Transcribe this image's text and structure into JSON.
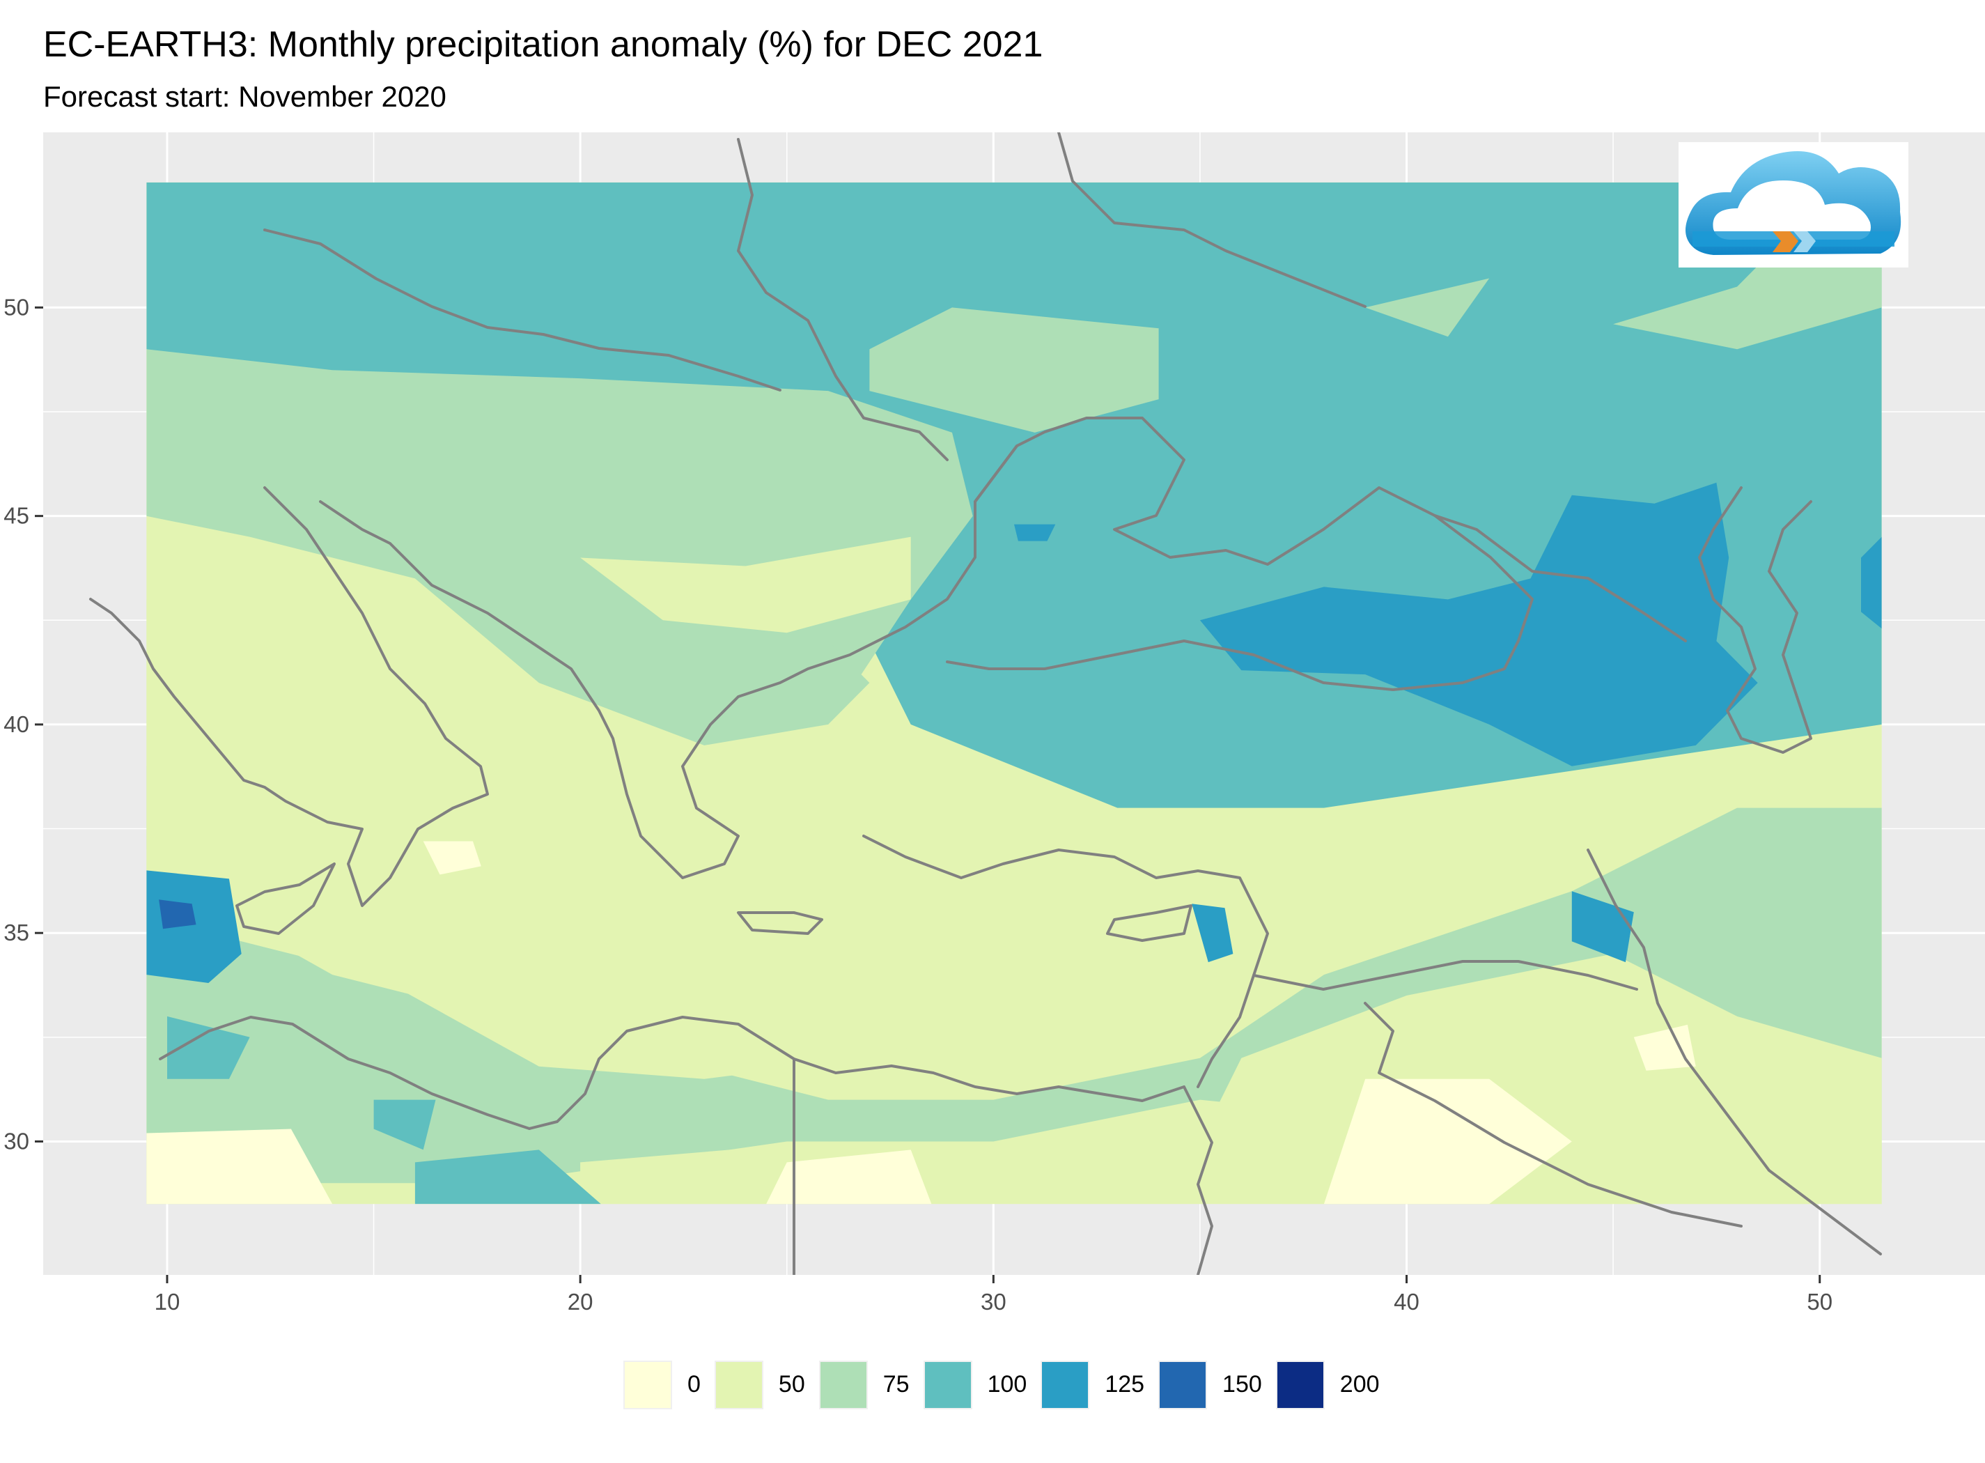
{
  "header": {
    "title": "EC-EARTH3: Monthly precipitation anomaly (%) for DEC 2021",
    "subtitle": "Forecast start: November 2020"
  },
  "chart_data": {
    "type": "heatmap",
    "x_ticks": [
      10,
      20,
      30,
      40,
      50
    ],
    "y_ticks": [
      30,
      35,
      40,
      45,
      50
    ],
    "xlim": [
      7,
      54
    ],
    "ylim": [
      26.8,
      54.2
    ],
    "data_extent": {
      "lon": [
        9.5,
        51.5
      ],
      "lat": [
        28.5,
        53
      ]
    },
    "panel_background": "#ebebeb",
    "grid": true,
    "legend_position": "bottom",
    "legend": [
      {
        "label": "0",
        "color": "#ffffd9"
      },
      {
        "label": "50",
        "color": "#e3f4b2"
      },
      {
        "label": "75",
        "color": "#aedfb6"
      },
      {
        "label": "100",
        "color": "#5fbfbf"
      },
      {
        "label": "125",
        "color": "#2a9ec5"
      },
      {
        "label": "150",
        "color": "#2267b0"
      },
      {
        "label": "200",
        "color": "#0c2c84"
      }
    ],
    "regions": [
      {
        "band": "100",
        "poly": [
          [
            9.5,
            53
          ],
          [
            51.5,
            53
          ],
          [
            51.5,
            40
          ],
          [
            38,
            38
          ],
          [
            33,
            38
          ],
          [
            28,
            40
          ],
          [
            26,
            44
          ],
          [
            22,
            47
          ],
          [
            14,
            48
          ],
          [
            9.5,
            49
          ]
        ]
      },
      {
        "band": "75",
        "poly": [
          [
            9.5,
            49
          ],
          [
            14,
            48.5
          ],
          [
            20,
            48.3
          ],
          [
            26,
            48
          ],
          [
            29,
            47
          ],
          [
            29.5,
            45
          ],
          [
            28,
            43
          ],
          [
            26,
            40
          ],
          [
            23,
            39.5
          ],
          [
            19,
            41
          ],
          [
            16,
            43.5
          ],
          [
            12,
            44.5
          ],
          [
            9.5,
            45
          ]
        ]
      },
      {
        "band": "75",
        "poly": [
          [
            27,
            49
          ],
          [
            29,
            50
          ],
          [
            34,
            49.5
          ],
          [
            34,
            47.8
          ],
          [
            31,
            47
          ],
          [
            27,
            48
          ]
        ]
      },
      {
        "band": "75",
        "poly": [
          [
            39,
            50
          ],
          [
            42,
            50.7
          ],
          [
            41,
            49.3
          ]
        ]
      },
      {
        "band": "75",
        "poly": [
          [
            45,
            49.6
          ],
          [
            48,
            50.5
          ],
          [
            50,
            52.5
          ],
          [
            51.5,
            52
          ],
          [
            51.5,
            50
          ],
          [
            48,
            49
          ]
        ]
      },
      {
        "band": "75",
        "poly": [
          [
            9.5,
            36.5
          ],
          [
            14,
            34
          ],
          [
            20,
            32.5
          ],
          [
            26,
            31
          ],
          [
            30,
            31
          ],
          [
            35,
            32
          ],
          [
            38,
            34
          ],
          [
            44,
            36
          ],
          [
            48,
            38
          ],
          [
            51.5,
            38
          ],
          [
            51.5,
            29
          ],
          [
            45,
            29
          ],
          [
            40,
            30.5
          ],
          [
            35,
            31
          ],
          [
            30,
            30
          ],
          [
            25,
            30
          ],
          [
            18,
            29
          ],
          [
            12,
            29
          ],
          [
            9.5,
            30
          ]
        ]
      },
      {
        "band": "75",
        "poly": [
          [
            23,
            43
          ],
          [
            26,
            42
          ],
          [
            27,
            41
          ],
          [
            26,
            40
          ],
          [
            24,
            40
          ],
          [
            23,
            41
          ]
        ]
      },
      {
        "band": "75",
        "poly": [
          [
            9.5,
            39
          ],
          [
            13,
            38
          ],
          [
            16,
            37.5
          ],
          [
            16,
            36
          ],
          [
            12,
            36
          ],
          [
            9.5,
            37
          ]
        ]
      },
      {
        "band": "50",
        "poly": [
          [
            9.5,
            43
          ],
          [
            13,
            42.5
          ],
          [
            16,
            41
          ],
          [
            19,
            39.5
          ],
          [
            22,
            37
          ],
          [
            26,
            36
          ],
          [
            30,
            35.5
          ],
          [
            33,
            37
          ],
          [
            31,
            33
          ],
          [
            27,
            32
          ],
          [
            23,
            31.5
          ],
          [
            19,
            31.8
          ],
          [
            15,
            34
          ],
          [
            11,
            35
          ],
          [
            9.5,
            36
          ]
        ]
      },
      {
        "band": "50",
        "poly": [
          [
            20,
            44
          ],
          [
            24,
            43.8
          ],
          [
            28,
            44.5
          ],
          [
            28,
            43
          ],
          [
            25,
            42.2
          ],
          [
            22,
            42.5
          ]
        ]
      },
      {
        "band": "50",
        "poly": [
          [
            20,
            29.5
          ],
          [
            26,
            30
          ],
          [
            28,
            29.5
          ],
          [
            26,
            28.5
          ],
          [
            20,
            28.5
          ]
        ]
      },
      {
        "band": "50",
        "poly": [
          [
            36,
            32
          ],
          [
            40,
            33.5
          ],
          [
            45,
            34.5
          ],
          [
            48,
            33
          ],
          [
            51.5,
            32
          ],
          [
            51.5,
            28.5
          ],
          [
            37,
            28.5
          ],
          [
            35,
            30
          ]
        ]
      },
      {
        "band": "0",
        "poly": [
          [
            39,
            31.5
          ],
          [
            42,
            31.5
          ],
          [
            44,
            30
          ],
          [
            42,
            28.5
          ],
          [
            38,
            28.5
          ]
        ]
      },
      {
        "band": "0",
        "poly": [
          [
            9.5,
            30.2
          ],
          [
            13,
            30.3
          ],
          [
            14,
            28.5
          ],
          [
            9.5,
            28.5
          ]
        ]
      },
      {
        "band": "0",
        "poly": [
          [
            16.2,
            37.2
          ],
          [
            17.4,
            37.2
          ],
          [
            17.6,
            36.6
          ],
          [
            16.6,
            36.4
          ]
        ]
      },
      {
        "band": "0",
        "poly": [
          [
            25,
            29.5
          ],
          [
            28,
            29.8
          ],
          [
            28.5,
            28.5
          ],
          [
            24.5,
            28.5
          ]
        ]
      },
      {
        "band": "0",
        "poly": [
          [
            45.5,
            32.5
          ],
          [
            46.8,
            32.8
          ],
          [
            47,
            31.8
          ],
          [
            45.8,
            31.7
          ]
        ]
      },
      {
        "band": "125",
        "poly": [
          [
            35,
            42.5
          ],
          [
            38,
            43.3
          ],
          [
            41,
            43
          ],
          [
            43,
            43.5
          ],
          [
            44,
            45.5
          ],
          [
            46,
            45.3
          ],
          [
            47.5,
            45.8
          ],
          [
            47.8,
            44
          ],
          [
            47.5,
            42
          ],
          [
            48.5,
            41
          ],
          [
            47,
            39.5
          ],
          [
            44,
            39
          ],
          [
            42,
            40
          ],
          [
            39,
            41.2
          ],
          [
            36,
            41.3
          ]
        ]
      },
      {
        "band": "125",
        "poly": [
          [
            51,
            44
          ],
          [
            51.5,
            44.5
          ],
          [
            51.5,
            42.3
          ],
          [
            51,
            42.7
          ]
        ]
      },
      {
        "band": "125",
        "poly": [
          [
            9.5,
            36.5
          ],
          [
            11.5,
            36.3
          ],
          [
            11.8,
            34.5
          ],
          [
            11,
            33.8
          ],
          [
            9.5,
            34
          ]
        ]
      },
      {
        "band": "125",
        "poly": [
          [
            34.8,
            35.7
          ],
          [
            35.6,
            35.6
          ],
          [
            35.8,
            34.5
          ],
          [
            35.2,
            34.3
          ]
        ]
      },
      {
        "band": "125",
        "poly": [
          [
            44,
            36
          ],
          [
            45.5,
            35.5
          ],
          [
            45.3,
            34.3
          ],
          [
            44,
            34.8
          ]
        ]
      },
      {
        "band": "125",
        "poly": [
          [
            30.5,
            44.8
          ],
          [
            31.5,
            44.8
          ],
          [
            31.3,
            44.4
          ],
          [
            30.6,
            44.4
          ]
        ]
      },
      {
        "band": "150",
        "poly": [
          [
            9.8,
            35.8
          ],
          [
            10.6,
            35.7
          ],
          [
            10.7,
            35.2
          ],
          [
            9.9,
            35.1
          ]
        ]
      },
      {
        "band": "100",
        "poly": [
          [
            15,
            31
          ],
          [
            16.5,
            31
          ],
          [
            16.2,
            29.8
          ],
          [
            15,
            30.3
          ]
        ]
      },
      {
        "band": "100",
        "poly": [
          [
            16,
            29.5
          ],
          [
            19,
            29.8
          ],
          [
            20.5,
            28.5
          ],
          [
            16,
            28.5
          ]
        ]
      },
      {
        "band": "100",
        "poly": [
          [
            10,
            33
          ],
          [
            12,
            32.5
          ],
          [
            11.5,
            31.5
          ],
          [
            10,
            31.5
          ]
        ]
      }
    ]
  },
  "logo": {
    "name": "cloud-logo",
    "colors": [
      "#22a6dc",
      "#e98c2a",
      "#ffffff"
    ]
  }
}
